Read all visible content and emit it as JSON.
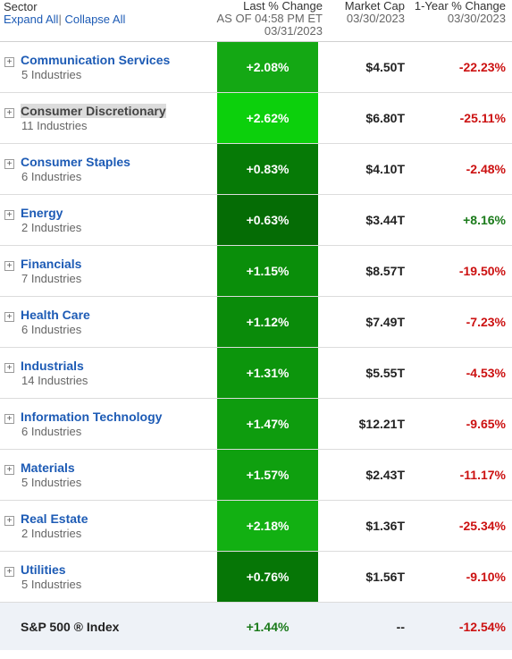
{
  "header": {
    "sector_label": "Sector",
    "expand_all": "Expand All",
    "separator": "|",
    "collapse_all": "Collapse All",
    "last_change": {
      "title": "Last % Change",
      "line2": "AS OF 04:58 PM ET",
      "line3": "03/31/2023"
    },
    "market_cap": {
      "title": "Market Cap",
      "line2": "03/30/2023"
    },
    "year_change": {
      "title": "1-Year % Change",
      "line2": "03/30/2023"
    }
  },
  "plus_glyph": "+",
  "sectors": [
    {
      "name": "Communication Services",
      "industries": "5 Industries",
      "change": "+2.08%",
      "change_value": 2.08,
      "bg": "#14a814",
      "market_cap": "$4.50T",
      "year_change": "-22.23%",
      "year_dir": "neg"
    },
    {
      "name": "Consumer Discretionary",
      "industries": "11 Industries",
      "change": "+2.62%",
      "change_value": 2.62,
      "bg": "#0cd00c",
      "market_cap": "$6.80T",
      "year_change": "-25.11%",
      "year_dir": "neg",
      "highlighted": true
    },
    {
      "name": "Consumer Staples",
      "industries": "6 Industries",
      "change": "+0.83%",
      "change_value": 0.83,
      "bg": "#067a06",
      "market_cap": "$4.10T",
      "year_change": "-2.48%",
      "year_dir": "neg"
    },
    {
      "name": "Energy",
      "industries": "2 Industries",
      "change": "+0.63%",
      "change_value": 0.63,
      "bg": "#056c05",
      "market_cap": "$3.44T",
      "year_change": "+8.16%",
      "year_dir": "pos"
    },
    {
      "name": "Financials",
      "industries": "7 Industries",
      "change": "+1.15%",
      "change_value": 1.15,
      "bg": "#0a8e0a",
      "market_cap": "$8.57T",
      "year_change": "-19.50%",
      "year_dir": "neg"
    },
    {
      "name": "Health Care",
      "industries": "6 Industries",
      "change": "+1.12%",
      "change_value": 1.12,
      "bg": "#0a8b0a",
      "market_cap": "$7.49T",
      "year_change": "-7.23%",
      "year_dir": "neg"
    },
    {
      "name": "Industrials",
      "industries": "14 Industries",
      "change": "+1.31%",
      "change_value": 1.31,
      "bg": "#0c950c",
      "market_cap": "$5.55T",
      "year_change": "-4.53%",
      "year_dir": "neg"
    },
    {
      "name": "Information Technology",
      "industries": "6 Industries",
      "change": "+1.47%",
      "change_value": 1.47,
      "bg": "#0e9c0e",
      "market_cap": "$12.21T",
      "year_change": "-9.65%",
      "year_dir": "neg"
    },
    {
      "name": "Materials",
      "industries": "5 Industries",
      "change": "+1.57%",
      "change_value": 1.57,
      "bg": "#0fa00f",
      "market_cap": "$2.43T",
      "year_change": "-11.17%",
      "year_dir": "neg"
    },
    {
      "name": "Real Estate",
      "industries": "2 Industries",
      "change": "+2.18%",
      "change_value": 2.18,
      "bg": "#12b012",
      "market_cap": "$1.36T",
      "year_change": "-25.34%",
      "year_dir": "neg"
    },
    {
      "name": "Utilities",
      "industries": "5 Industries",
      "change": "+0.76%",
      "change_value": 0.76,
      "bg": "#067606",
      "market_cap": "$1.56T",
      "year_change": "-9.10%",
      "year_dir": "neg"
    }
  ],
  "index": {
    "name": "S&P 500 ® Index",
    "change": "+1.44%",
    "market_cap": "--",
    "year_change": "-12.54%"
  },
  "colors": {
    "link": "#1d5bb5",
    "negative": "#cc1111",
    "positive": "#1a7a1a",
    "footer_bg": "#eef2f7"
  }
}
